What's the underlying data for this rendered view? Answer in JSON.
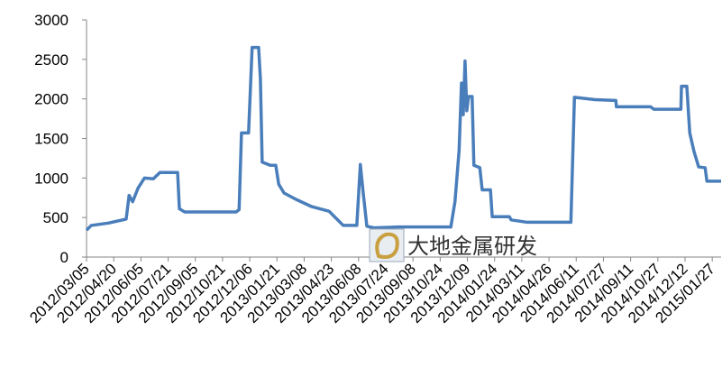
{
  "chart_data": {
    "type": "line",
    "x": [
      "2012/03/05",
      "2012/03/13",
      "2012/04/11",
      "2012/05/11",
      "2012/05/16",
      "2012/05/22",
      "2012/05/31",
      "2012/06/11",
      "2012/06/26",
      "2012/07/07",
      "2012/08/06",
      "2012/08/09",
      "2012/08/18",
      "2012/11/13",
      "2012/11/18",
      "2012/11/22",
      "2012/12/04",
      "2012/12/10",
      "2012/12/21",
      "2012/12/24",
      "2012/12/27",
      "2013/01/10",
      "2013/01/19",
      "2013/01/24",
      "2013/02/02",
      "2013/02/22",
      "2013/03/20",
      "2013/04/19",
      "2013/05/13",
      "2013/06/05",
      "2013/06/11",
      "2013/06/16",
      "2013/06/22",
      "2013/07/04",
      "2013/08/11",
      "2013/11/11",
      "2013/11/18",
      "2013/11/25",
      "2013/11/29",
      "2013/12/02",
      "2013/12/05",
      "2013/12/08",
      "2013/12/11",
      "2013/12/17",
      "2013/12/20",
      "2013/12/30",
      "2014/01/03",
      "2014/01/17",
      "2014/01/20",
      "2014/02/18",
      "2014/02/21",
      "2014/03/20",
      "2014/06/02",
      "2014/06/08",
      "2014/07/13",
      "2014/08/17",
      "2014/08/18",
      "2014/10/15",
      "2014/10/20",
      "2014/12/05",
      "2014/12/06",
      "2014/12/15",
      "2014/12/20",
      "2014/12/27",
      "2015/01/04",
      "2015/01/15",
      "2015/01/18",
      "2015/02/11"
    ],
    "series": [
      {
        "color": "#4a7ebb",
        "values": [
          340,
          400,
          430,
          480,
          780,
          700,
          870,
          1000,
          990,
          1070,
          1070,
          610,
          570,
          570,
          600,
          1570,
          1570,
          2650,
          2650,
          2250,
          1200,
          1160,
          1160,
          920,
          810,
          730,
          640,
          580,
          400,
          400,
          1170,
          800,
          390,
          370,
          380,
          380,
          700,
          1350,
          2200,
          1800,
          2480,
          1850,
          2030,
          2030,
          1160,
          1130,
          850,
          850,
          510,
          510,
          470,
          440,
          440,
          2020,
          1990,
          1980,
          1900,
          1900,
          1870,
          1870,
          2160,
          2160,
          1570,
          1340,
          1140,
          1130,
          960,
          960
        ]
      }
    ],
    "xlim": [
      "2012/03/05",
      "2015/02/11"
    ],
    "xticks": [
      "2012/03/05",
      "2012/04/20",
      "2012/06/05",
      "2012/07/21",
      "2012/09/05",
      "2012/10/21",
      "2012/12/06",
      "2013/01/21",
      "2013/03/08",
      "2013/04/23",
      "2013/06/08",
      "2013/07/24",
      "2013/09/08",
      "2013/10/24",
      "2013/12/09",
      "2014/01/24",
      "2014/03/11",
      "2014/04/26",
      "2014/06/11",
      "2014/07/27",
      "2014/09/11",
      "2014/10/27",
      "2014/12/12",
      "2015/01/27"
    ],
    "ylim": [
      0,
      3000
    ],
    "yticks": [
      0,
      500,
      1000,
      1500,
      2000,
      2500,
      3000
    ],
    "watermark": "大地金属研发"
  }
}
